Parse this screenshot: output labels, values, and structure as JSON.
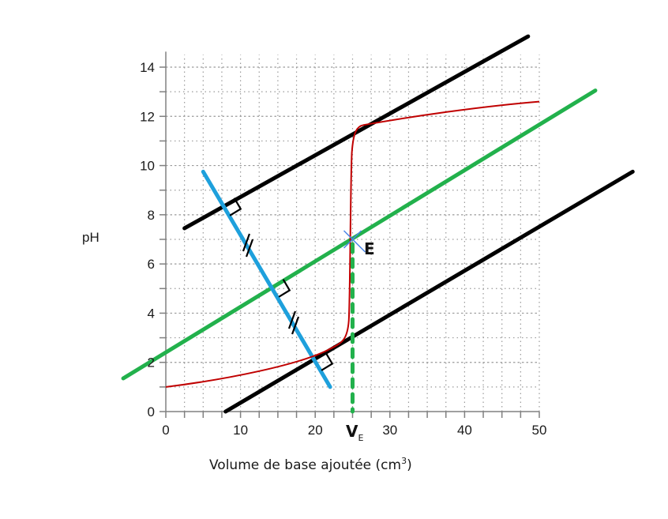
{
  "chart_data": {
    "type": "line",
    "title": "",
    "xlabel": "Volume de base ajoutée (cm",
    "xlabel_sup": "3",
    "xlabel_close": ")",
    "ylabel": "pH",
    "xlim": [
      0,
      50
    ],
    "ylim": [
      0,
      14
    ],
    "x_ticks": [
      "0",
      "10",
      "20",
      "30",
      "40",
      "50"
    ],
    "y_ticks": [
      "0",
      "2",
      "4",
      "6",
      "8",
      "10",
      "12",
      "14"
    ],
    "grid": true,
    "grid_style": "dotted",
    "series": [
      {
        "name": "titration curve",
        "color": "#c00000",
        "x": [
          0,
          5,
          10,
          15,
          20,
          22,
          24,
          24.5,
          25,
          25.5,
          26,
          28,
          30,
          35,
          40,
          45,
          50
        ],
        "y": [
          1.0,
          1.2,
          1.5,
          1.85,
          2.3,
          2.6,
          3.0,
          3.4,
          7.0,
          10.6,
          11.4,
          11.7,
          11.85,
          12.1,
          12.3,
          12.45,
          12.6
        ]
      },
      {
        "name": "upper tangent",
        "color": "#000000",
        "x": [
          2.5,
          48.5
        ],
        "y": [
          7.45,
          15.25
        ]
      },
      {
        "name": "lower tangent",
        "color": "#000000",
        "x": [
          8,
          62.5
        ],
        "y": [
          0,
          9.75
        ]
      },
      {
        "name": "median parallel line",
        "color": "#22b14c",
        "x": [
          -5.7,
          57.5
        ],
        "y": [
          1.35,
          13.05
        ]
      },
      {
        "name": "perpendicular segment",
        "color": "#1ea0dc",
        "x": [
          5,
          22
        ],
        "y": [
          9.75,
          1.0
        ]
      },
      {
        "name": "equivalence vertical (dashed)",
        "color": "#22b14c",
        "x": [
          25,
          25
        ],
        "y": [
          7.0,
          0
        ]
      }
    ],
    "annotations": [
      {
        "text": "E",
        "x": 25,
        "y": 7.0,
        "note": "equivalence point, blue cross marker"
      },
      {
        "text": "V",
        "sub": "E",
        "x": 25,
        "y": 0,
        "note": "equivalence volume on x-axis"
      },
      {
        "text": "//",
        "note": "equal-length marks on blue segment (two)"
      },
      {
        "text": "right-angle marks",
        "note": "three right-angle symbols where blue segment meets tangents"
      }
    ]
  },
  "labels": {
    "ve_main": "V",
    "ve_sub": "E",
    "e_point": "E"
  },
  "colors": {
    "curve": "#c00000",
    "tangent": "#000000",
    "median": "#22b14c",
    "perpendicular": "#1ea0dc",
    "marker": "#4a86e8",
    "axis": "#808080",
    "grid": "#9a9a9a"
  }
}
